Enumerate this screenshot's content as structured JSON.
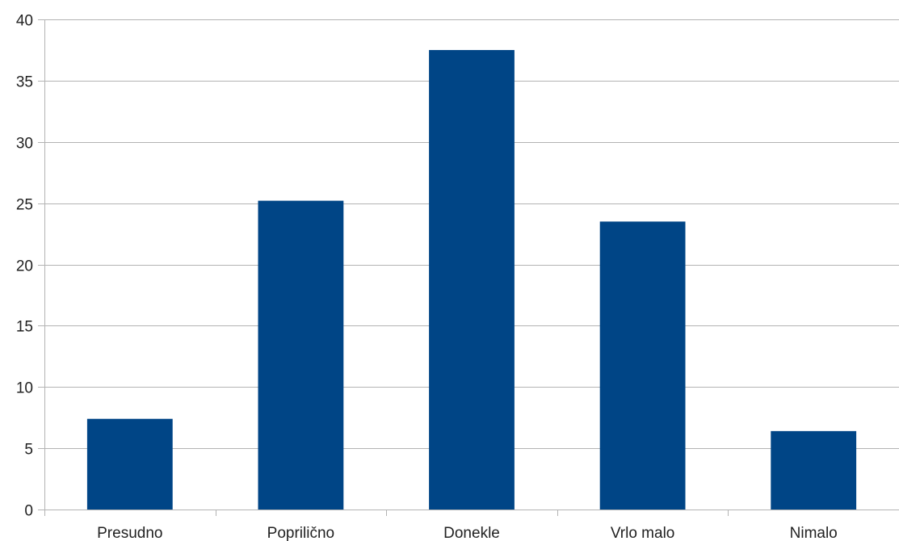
{
  "chart_data": {
    "type": "bar",
    "title": "",
    "xlabel": "",
    "ylabel": "",
    "categories": [
      "Presudno",
      "Poprilično",
      "Donekle",
      "Vrlo malo",
      "Nimalo"
    ],
    "values": [
      7.4,
      25.2,
      37.5,
      23.5,
      6.4
    ],
    "ylim": [
      0,
      40
    ],
    "yticks": [
      0,
      5,
      10,
      15,
      20,
      25,
      30,
      35,
      40
    ],
    "ytick_labels": [
      "0",
      "5",
      "10",
      "15",
      "20",
      "25",
      "30",
      "35",
      "40"
    ],
    "grid": true,
    "legend": "none",
    "bar_color": "#004586",
    "grid_color": "#b3b3b3",
    "axis_color": "#b3b3b3"
  }
}
